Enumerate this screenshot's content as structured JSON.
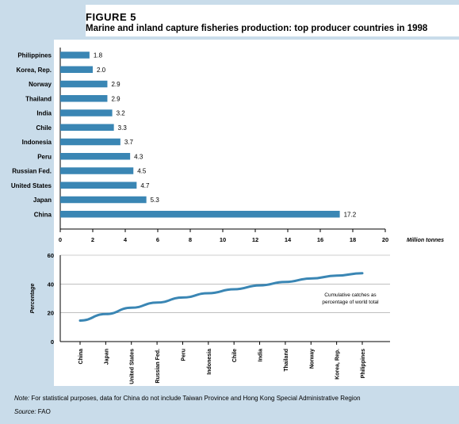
{
  "figure": {
    "label": "FIGURE 5",
    "title": "Marine and inland capture fisheries production: top producer countries in 1998"
  },
  "chart_data": [
    {
      "type": "bar",
      "orientation": "horizontal",
      "categories": [
        "Philippines",
        "Korea, Rep.",
        "Norway",
        "Thailand",
        "India",
        "Chile",
        "Indonesia",
        "Peru",
        "Russian Fed.",
        "United States",
        "Japan",
        "China"
      ],
      "values": [
        1.8,
        2.0,
        2.9,
        2.9,
        3.2,
        3.3,
        3.7,
        4.3,
        4.5,
        4.7,
        5.3,
        17.2
      ],
      "value_labels": [
        "1.8",
        "2.0",
        "2.9",
        "2.9",
        "3.2",
        "3.3",
        "3.7",
        "4.3",
        "4.5",
        "4.7",
        "5.3",
        "17.2"
      ],
      "xlabel": "Million tonnes",
      "xlim": [
        0,
        20
      ],
      "xticks": [
        "0",
        "2",
        "4",
        "6",
        "8",
        "10",
        "12",
        "14",
        "16",
        "18",
        "20"
      ],
      "bar_color": "#3a86b4",
      "grid": false
    },
    {
      "type": "line",
      "categories": [
        "China",
        "Japan",
        "United States",
        "Russian Fed.",
        "Peru",
        "Indonesia",
        "Chile",
        "India",
        "Thailand",
        "Norway",
        "Korea, Rep.",
        "Philippines"
      ],
      "values": [
        14.6,
        19.1,
        23.5,
        27.1,
        30.6,
        33.6,
        36.3,
        39.0,
        41.4,
        43.8,
        45.8,
        47.5
      ],
      "ylabel": "Percentage",
      "ylim": [
        0,
        60
      ],
      "yticks": [
        "0",
        "20",
        "40",
        "60"
      ],
      "grid": true,
      "annotation": "Cumulative catches as percentage of world total",
      "line_color": "#3a86b4"
    }
  ],
  "note": {
    "label": "Note:",
    "text": " For statistical purposes, data for China do not include Taiwan Province and Hong Kong Special Administrative Region"
  },
  "source": {
    "label": "Source:",
    "text": " FAO"
  }
}
